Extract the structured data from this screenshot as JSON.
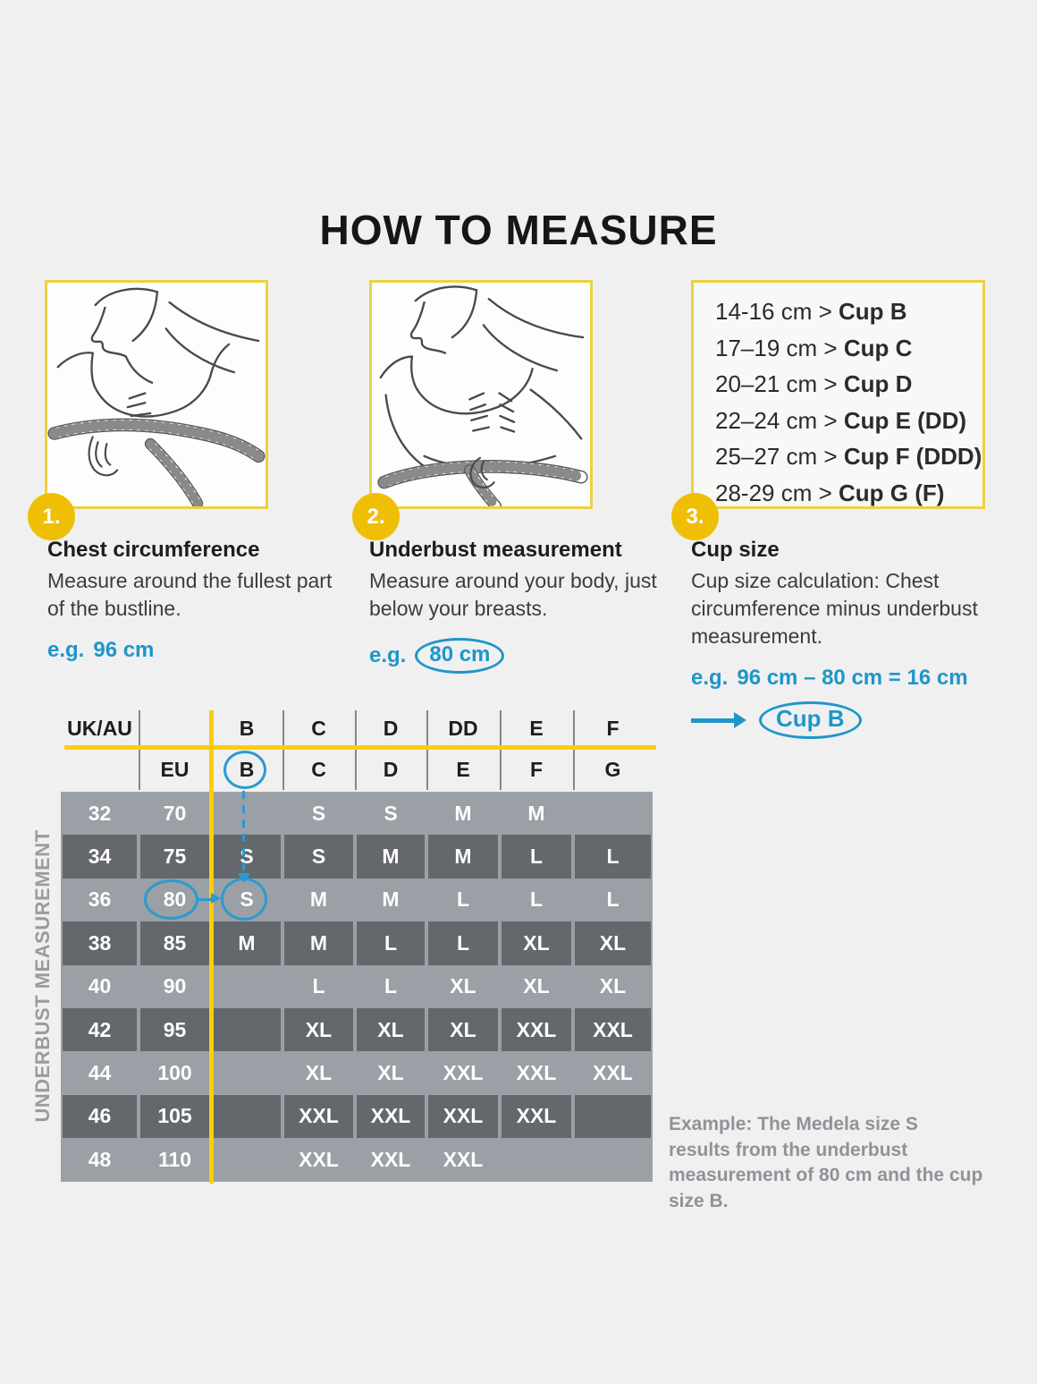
{
  "page": {
    "title": "HOW TO MEASURE"
  },
  "colors": {
    "accent_yellow": "#fdce07",
    "badge_yellow": "#efbf06",
    "accent_blue": "#1e96c9",
    "row_light": "#9aa0a5",
    "row_dark": "#64676b",
    "footnote_gray": "#8f9398"
  },
  "steps": [
    {
      "number": "1.",
      "heading": "Chest circumference",
      "body": "Measure around the fullest part of the bustline.",
      "example_prefix": "e.g.",
      "example_value": "96 cm"
    },
    {
      "number": "2.",
      "heading": "Underbust measurement",
      "body": "Measure around your body, just below your breasts.",
      "example_prefix": "e.g.",
      "example_value": "80 cm"
    },
    {
      "number": "3.",
      "heading": "Cup size",
      "body": "Cup size calculation: Chest circumference minus underbust measurement.",
      "example_prefix": "e.g.",
      "example_value": "96 cm – 80 cm = 16 cm",
      "result_label": "Cup B"
    }
  ],
  "cup_chart": {
    "lines": [
      {
        "range": "14-16 cm >",
        "cup": "Cup B"
      },
      {
        "range": "17–19 cm >",
        "cup": "Cup C"
      },
      {
        "range": "20–21 cm >",
        "cup": "Cup D"
      },
      {
        "range": "22–24 cm >",
        "cup": "Cup E (DD)"
      },
      {
        "range": "25–27 cm >",
        "cup": "Cup F (DDD)"
      },
      {
        "range": "28-29 cm >",
        "cup": "Cup G (F)"
      }
    ]
  },
  "size_table": {
    "side_label": "UNDERBUST MEASUREMENT",
    "header_row_1": [
      "UK/AU",
      "",
      "B",
      "C",
      "D",
      "DD",
      "E",
      "F"
    ],
    "header_row_2": [
      "",
      "EU",
      "B",
      "C",
      "D",
      "E",
      "F",
      "G"
    ],
    "rows": [
      {
        "uk": "32",
        "eu": "70",
        "cells": [
          "",
          "S",
          "S",
          "M",
          "M",
          ""
        ],
        "shade": "light"
      },
      {
        "uk": "34",
        "eu": "75",
        "cells": [
          "S",
          "S",
          "M",
          "M",
          "L",
          "L"
        ],
        "shade": "dark"
      },
      {
        "uk": "36",
        "eu": "80",
        "cells": [
          "S",
          "M",
          "M",
          "L",
          "L",
          "L"
        ],
        "shade": "light"
      },
      {
        "uk": "38",
        "eu": "85",
        "cells": [
          "M",
          "M",
          "L",
          "L",
          "XL",
          "XL"
        ],
        "shade": "dark"
      },
      {
        "uk": "40",
        "eu": "90",
        "cells": [
          "",
          "L",
          "L",
          "XL",
          "XL",
          "XL"
        ],
        "shade": "light"
      },
      {
        "uk": "42",
        "eu": "95",
        "cells": [
          "",
          "XL",
          "XL",
          "XL",
          "XXL",
          "XXL"
        ],
        "shade": "dark"
      },
      {
        "uk": "44",
        "eu": "100",
        "cells": [
          "",
          "XL",
          "XL",
          "XXL",
          "XXL",
          "XXL"
        ],
        "shade": "light"
      },
      {
        "uk": "46",
        "eu": "105",
        "cells": [
          "",
          "XXL",
          "XXL",
          "XXL",
          "XXL",
          ""
        ],
        "shade": "dark"
      },
      {
        "uk": "48",
        "eu": "110",
        "cells": [
          "",
          "XXL",
          "XXL",
          "XXL",
          "",
          ""
        ],
        "shade": "light"
      }
    ]
  },
  "footnote": "Example: The Medela size S results from the underbust measurement of 80 cm and the cup size B."
}
